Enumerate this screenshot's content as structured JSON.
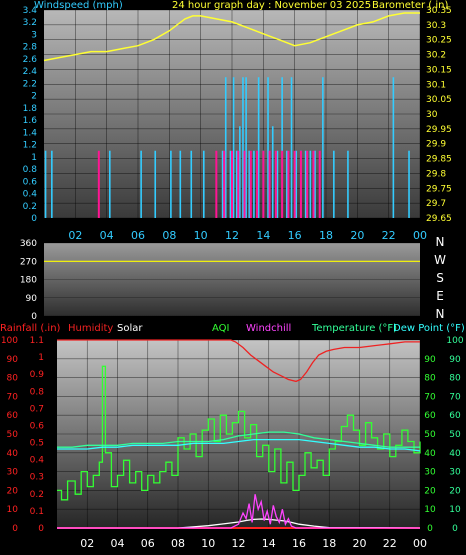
{
  "colors": {
    "wind": "#33ccff",
    "barometer": "#ffff33",
    "gust": "#ff1493",
    "direction": "#ffff00",
    "rain": "#ff2222",
    "humidity": "#ee2222",
    "solar": "#ffffff",
    "aqi": "#33ff33",
    "windchill": "#ff44ff",
    "temperature": "#33ff99",
    "dewpoint": "#33ffff"
  },
  "chart_data": [
    {
      "type": "line",
      "title": "24 hour graph day : November 03 2025",
      "left_axis_label": "Windspeed (mph)",
      "right_axis_label": "Barometer ( in)",
      "left_ticks": [
        "3.4",
        "3.2",
        "3",
        "2.8",
        "2.6",
        "2.4",
        "2.2",
        "2",
        "1.8",
        "1.6",
        "1.4",
        "1.2",
        "1",
        "0.8",
        "0.6",
        "0.4",
        "0.2",
        "0"
      ],
      "right_ticks": [
        "30.35",
        "30.3",
        "30.25",
        "30.2",
        "30.15",
        "30.1",
        "30.05",
        "30",
        "29.95",
        "29.9",
        "29.85",
        "29.8",
        "29.75",
        "29.7",
        "29.65"
      ],
      "ylim_left": [
        0,
        3.4
      ],
      "ylim_right": [
        29.65,
        30.35
      ],
      "x_ticks": [
        "02",
        "04",
        "06",
        "08",
        "10",
        "12",
        "14",
        "16",
        "18",
        "20",
        "22",
        "00"
      ],
      "xlim": [
        0,
        24
      ],
      "series": [
        {
          "key": "barometer",
          "axis": "right",
          "x": [
            0,
            1,
            2,
            3,
            4,
            5,
            6,
            7,
            8,
            9,
            9.5,
            10,
            11,
            12,
            13,
            14,
            15,
            16,
            17,
            18,
            19,
            20,
            21,
            22,
            23,
            24
          ],
          "values": [
            30.18,
            30.19,
            30.2,
            30.21,
            30.21,
            30.22,
            30.23,
            30.25,
            30.28,
            30.32,
            30.33,
            30.33,
            30.32,
            30.31,
            30.29,
            30.27,
            30.25,
            30.23,
            30.24,
            30.26,
            30.28,
            30.3,
            30.31,
            30.33,
            30.34,
            30.34
          ]
        },
        {
          "key": "wind",
          "axis": "left",
          "kind": "spikes",
          "x": [
            0.1,
            0.5,
            4.2,
            6.2,
            7.1,
            8.1,
            8.7,
            9.4,
            10.2,
            11.4,
            11.6,
            11.9,
            12.1,
            12.3,
            12.5,
            12.7,
            12.9,
            13.1,
            13.4,
            13.7,
            14.0,
            14.3,
            14.6,
            14.9,
            15.2,
            15.5,
            15.8,
            16.1,
            16.4,
            16.7,
            17.0,
            17.3,
            17.8,
            18.5,
            19.4,
            22.3,
            23.3
          ],
          "values": [
            1.1,
            1.1,
            1.1,
            1.1,
            1.1,
            1.1,
            1.1,
            1.1,
            1.1,
            1.1,
            2.3,
            1.1,
            2.3,
            1.1,
            1.5,
            2.3,
            2.3,
            1.1,
            1.1,
            2.3,
            1.1,
            2.3,
            1.5,
            1.1,
            2.3,
            1.1,
            2.3,
            1.1,
            1.1,
            1.1,
            1.1,
            1.1,
            2.3,
            1.1,
            1.1,
            2.3,
            1.1
          ]
        },
        {
          "key": "gust",
          "axis": "left",
          "kind": "spikes",
          "x": [
            3.5,
            11.0,
            11.5,
            12.0,
            12.4,
            12.8,
            13.2,
            13.6,
            14.0,
            14.4,
            14.8,
            15.2,
            15.6,
            16.0,
            16.4,
            16.8,
            17.2,
            17.6
          ],
          "values": [
            1.1,
            1.1,
            1.1,
            1.1,
            1.1,
            1.1,
            1.1,
            1.1,
            1.1,
            1.1,
            1.1,
            1.1,
            1.1,
            1.1,
            1.1,
            1.1,
            1.1,
            1.1
          ]
        }
      ]
    },
    {
      "type": "line",
      "left_ticks": [
        "360",
        "270",
        "180",
        "90",
        "0"
      ],
      "right_labels": [
        "N",
        "W",
        "S",
        "E",
        "N"
      ],
      "ylim": [
        0,
        360
      ],
      "xlim": [
        0,
        24
      ],
      "series": [
        {
          "key": "direction",
          "x": [
            0,
            24
          ],
          "values": [
            270,
            270
          ]
        }
      ]
    },
    {
      "type": "line",
      "legend": [
        "Rainfall (.in)",
        "Humidity",
        "Solar",
        "AQI",
        "Windchill",
        "Temperature (°F)",
        "Dew Point (°F)"
      ],
      "left_ticks_pct": [
        "100",
        "90",
        "80",
        "70",
        "60",
        "50",
        "40",
        "30",
        "20",
        "10",
        "0"
      ],
      "left_ticks_rain": [
        "1.1",
        "1",
        "0.9",
        "0.8",
        "0.7",
        "0.6",
        "0.5",
        "0.4",
        "0.3",
        "0.2",
        "0.1",
        "0"
      ],
      "right_ticks_temp": [
        "100",
        "90",
        "80",
        "70",
        "60",
        "50",
        "40",
        "30",
        "20",
        "10",
        "0"
      ],
      "right_ticks_aqi": [
        "90",
        "80",
        "70",
        "60",
        "50",
        "40",
        "30",
        "20",
        "10",
        "0"
      ],
      "ylim_temp": [
        0,
        100
      ],
      "x_ticks": [
        "02",
        "04",
        "06",
        "08",
        "10",
        "12",
        "14",
        "16",
        "18",
        "20",
        "22",
        "00"
      ],
      "xlim": [
        0,
        24
      ],
      "series": [
        {
          "key": "humidity",
          "x": [
            0,
            11.5,
            11.8,
            12.3,
            12.8,
            13.3,
            13.8,
            14.3,
            14.8,
            15.3,
            15.8,
            16.1,
            16.5,
            16.9,
            17.3,
            17.8,
            18.3,
            19,
            20,
            21,
            22,
            23,
            24
          ],
          "values": [
            100,
            100,
            99,
            96,
            92,
            89,
            86,
            83,
            81,
            79,
            78,
            79,
            83,
            88,
            92,
            94,
            95,
            96,
            96,
            97,
            98,
            99,
            99
          ]
        },
        {
          "key": "temperature",
          "x": [
            0,
            1,
            2,
            3,
            4,
            5,
            6,
            7,
            8,
            9,
            10,
            11,
            12,
            13,
            14,
            15,
            16,
            17,
            18,
            19,
            20,
            21,
            22,
            23,
            24
          ],
          "values": [
            43,
            43,
            44,
            44,
            44,
            45,
            45,
            45,
            46,
            46,
            46,
            47,
            49,
            50,
            51,
            51,
            50,
            48,
            47,
            46,
            45,
            44,
            43,
            43,
            43
          ]
        },
        {
          "key": "dewpoint",
          "x": [
            0,
            1,
            2,
            3,
            4,
            5,
            6,
            7,
            8,
            9,
            10,
            11,
            12,
            13,
            14,
            15,
            16,
            17,
            18,
            19,
            20,
            21,
            22,
            23,
            24
          ],
          "values": [
            42,
            42,
            42,
            43,
            43,
            44,
            44,
            44,
            44,
            45,
            45,
            45,
            46,
            47,
            47,
            47,
            47,
            46,
            45,
            44,
            43,
            43,
            42,
            42,
            41
          ]
        },
        {
          "key": "aqi",
          "x": [
            0,
            0.3,
            0.7,
            1.2,
            1.6,
            2.0,
            2.4,
            2.8,
            3.0,
            3.2,
            3.6,
            4.0,
            4.4,
            4.8,
            5.2,
            5.6,
            6.0,
            6.4,
            6.8,
            7.2,
            7.6,
            8.0,
            8.4,
            8.8,
            9.2,
            9.6,
            10.0,
            10.4,
            10.8,
            11.2,
            11.6,
            12.0,
            12.4,
            12.8,
            13.2,
            13.6,
            14.0,
            14.4,
            14.8,
            15.2,
            15.6,
            16.0,
            16.4,
            16.8,
            17.2,
            17.6,
            18.0,
            18.4,
            18.8,
            19.2,
            19.6,
            20.0,
            20.4,
            20.8,
            21.2,
            21.6,
            22.0,
            22.4,
            22.8,
            23.2,
            23.6,
            24.0
          ],
          "values": [
            20,
            15,
            25,
            18,
            30,
            22,
            28,
            35,
            86,
            40,
            22,
            28,
            36,
            24,
            30,
            20,
            28,
            24,
            30,
            35,
            28,
            48,
            42,
            50,
            38,
            52,
            58,
            46,
            60,
            50,
            56,
            62,
            48,
            55,
            38,
            44,
            30,
            42,
            24,
            35,
            20,
            28,
            40,
            32,
            36,
            28,
            42,
            46,
            54,
            60,
            52,
            44,
            56,
            48,
            42,
            50,
            38,
            44,
            52,
            46,
            40,
            46
          ]
        },
        {
          "key": "solar",
          "x": [
            0,
            8,
            9,
            10,
            11,
            12,
            12.5,
            13,
            13.5,
            14,
            14.5,
            15,
            15.5,
            16,
            17,
            18,
            24
          ],
          "values": [
            0,
            0,
            0.6,
            1.2,
            2.2,
            3.2,
            4.0,
            4.6,
            4.8,
            4.6,
            4.2,
            3.8,
            3.0,
            2.0,
            1.0,
            0.2,
            0
          ]
        },
        {
          "key": "windchill",
          "x": [
            0,
            11.5,
            12.0,
            12.3,
            12.5,
            12.7,
            12.9,
            13.1,
            13.3,
            13.5,
            13.7,
            13.9,
            14.1,
            14.3,
            14.5,
            14.7,
            14.9,
            15.1,
            15.3,
            15.5,
            15.8,
            16.2,
            24
          ],
          "values": [
            0,
            0,
            2,
            8,
            5,
            13,
            3,
            18,
            10,
            14,
            4,
            9,
            2,
            12,
            6,
            3,
            10,
            2,
            5,
            1,
            0,
            0,
            0
          ]
        },
        {
          "key": "rain",
          "x": [
            0,
            24
          ],
          "values": [
            0,
            0
          ]
        }
      ]
    }
  ]
}
